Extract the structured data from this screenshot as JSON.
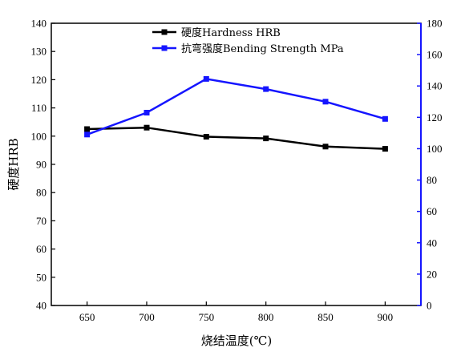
{
  "chart_data": {
    "type": "line",
    "x": [
      650,
      700,
      750,
      800,
      850,
      900
    ],
    "xlabel": "烧结温度(℃)",
    "xlim": [
      620,
      930
    ],
    "xticks": [
      650,
      700,
      750,
      800,
      850,
      900
    ],
    "y_left": {
      "label": "硬度HRB",
      "lim": [
        40,
        140
      ],
      "ticks": [
        40,
        50,
        60,
        70,
        80,
        90,
        100,
        110,
        120,
        130,
        140
      ]
    },
    "y_right": {
      "label": "",
      "lim": [
        0,
        180
      ],
      "ticks": [
        0,
        20,
        40,
        60,
        80,
        100,
        120,
        140,
        160,
        180
      ],
      "color": "#1515ff"
    },
    "series": [
      {
        "name": "硬度Hardness HRB",
        "axis": "left",
        "color": "#000000",
        "values": [
          102.5,
          103.0,
          99.8,
          99.2,
          96.3,
          95.5
        ]
      },
      {
        "name": "抗弯强度Bending Strength MPa",
        "axis": "right",
        "color": "#1515ff",
        "values": [
          109,
          123,
          144.5,
          138,
          130,
          119
        ]
      }
    ],
    "legend_position": "top-center"
  }
}
